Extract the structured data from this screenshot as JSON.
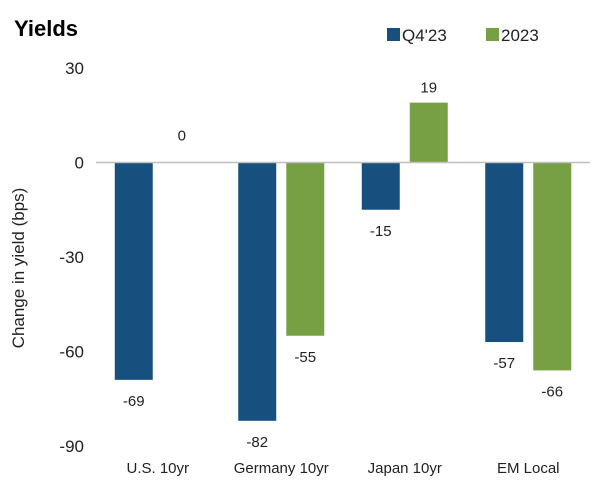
{
  "chart_data": {
    "type": "bar",
    "title": "Yields",
    "xlabel": "",
    "ylabel": "Change in yield (bps)",
    "categories": [
      "U.S. 10yr",
      "Germany 10yr",
      "Japan 10yr",
      "EM Local"
    ],
    "series": [
      {
        "name": "Q4'23",
        "values": [
          -69,
          -82,
          -15,
          -57
        ],
        "color": "#17507f"
      },
      {
        "name": "2023",
        "values": [
          0,
          -55,
          19,
          -66
        ],
        "color": "#77a045"
      }
    ],
    "ylim": [
      -90,
      30
    ],
    "yticks": [
      30,
      0,
      -30,
      -60,
      -90
    ],
    "grid": false,
    "legend": "top-right",
    "data_labels": true
  }
}
